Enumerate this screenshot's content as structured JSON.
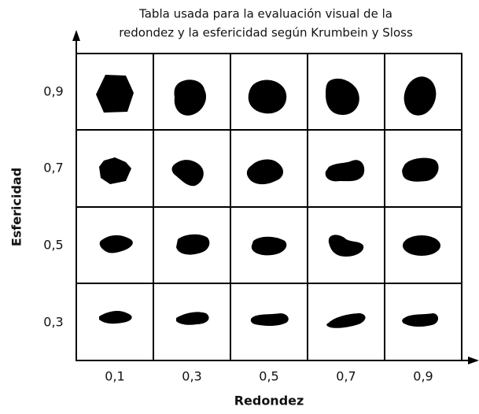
{
  "header": {
    "title_lines": [
      "Tabla usada para la evaluación visual de la",
      "redondez y la esfericidad según Krumbein y Sloss"
    ]
  },
  "axes": {
    "y_title": "Esfericidad",
    "x_title": "Redondez",
    "x_labels": [
      "0,1",
      "0,3",
      "0,5",
      "0,7",
      "0,9"
    ],
    "y_labels": [
      "0,9",
      "0,7",
      "0,5",
      "0,3"
    ]
  }
}
